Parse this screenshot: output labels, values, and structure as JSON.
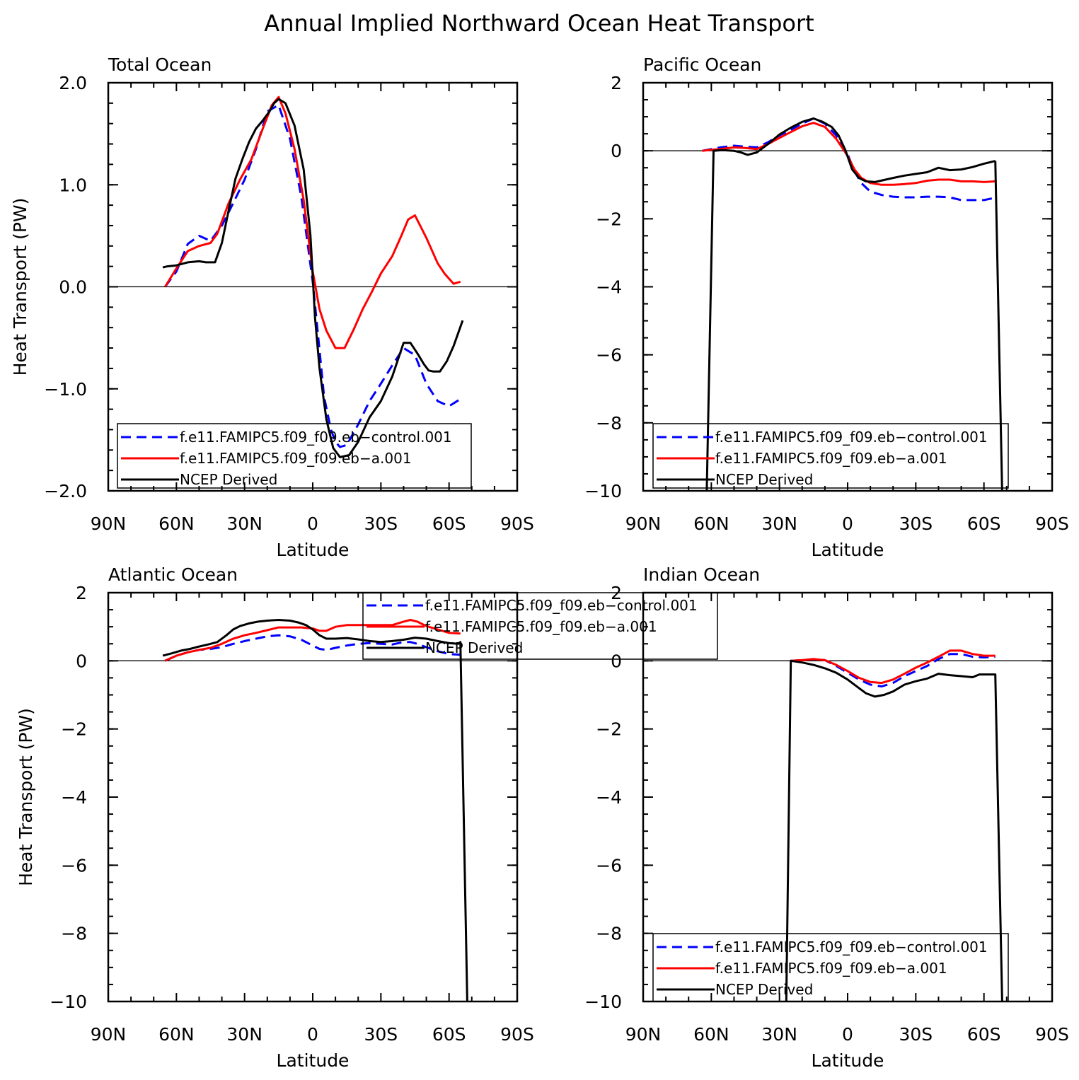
{
  "title": "Annual Implied Northward Ocean Heat Transport",
  "chart_data": [
    {
      "type": "line",
      "panel": "total",
      "subtitle": "Total Ocean",
      "xlabel": "Latitude",
      "ylabel": "Heat Transport (PW)",
      "xlim": [
        90,
        -90
      ],
      "ylim": [
        -2,
        2
      ],
      "x_ticks": [
        90,
        60,
        30,
        0,
        -30,
        -60,
        -90
      ],
      "x_tick_labels": [
        "90N",
        "60N",
        "30N",
        "0",
        "30S",
        "60S",
        "90S"
      ],
      "y_ticks": [
        -2,
        -1,
        0,
        1,
        2
      ],
      "y_tick_labels": [
        "−2.0",
        "−1.0",
        "0.0",
        "1.0",
        "2.0"
      ],
      "legend_position": "bottom-left",
      "series": [
        {
          "name": "f.e11.FAMIPC5.f09_f09.eb−control.001",
          "color": "#0000ff",
          "dash": "dashed",
          "x": [
            65,
            60,
            55,
            50,
            45,
            40,
            35,
            30,
            25,
            20,
            15,
            10,
            5,
            0,
            -3,
            -5,
            -8,
            -10,
            -12,
            -15,
            -20,
            -25,
            -30,
            -35,
            -40,
            -45,
            -50,
            -55,
            -60,
            -65
          ],
          "y": [
            0.0,
            0.15,
            0.42,
            0.5,
            0.45,
            0.6,
            0.82,
            1.05,
            1.35,
            1.72,
            1.78,
            1.45,
            0.88,
            0.05,
            -0.62,
            -1.08,
            -1.4,
            -1.52,
            -1.57,
            -1.55,
            -1.35,
            -1.12,
            -0.95,
            -0.77,
            -0.6,
            -0.67,
            -0.95,
            -1.12,
            -1.17,
            -1.1
          ]
        },
        {
          "name": "f.e11.FAMIPC5.f09_f09.eb−a.001",
          "color": "#ff0000",
          "dash": "solid",
          "x": [
            65,
            60,
            55,
            50,
            45,
            42,
            37,
            32,
            27,
            22,
            18,
            15,
            12,
            8,
            4,
            0,
            -3,
            -6,
            -10,
            -14,
            -18,
            -22,
            -26,
            -30,
            -35,
            -39,
            -42,
            -45,
            -50,
            -55,
            -58,
            -62,
            -65
          ],
          "y": [
            0.0,
            0.18,
            0.35,
            0.4,
            0.43,
            0.52,
            0.82,
            1.05,
            1.25,
            1.55,
            1.78,
            1.86,
            1.7,
            1.35,
            0.85,
            0.15,
            -0.22,
            -0.43,
            -0.6,
            -0.6,
            -0.42,
            -0.22,
            -0.05,
            0.13,
            0.3,
            0.5,
            0.66,
            0.7,
            0.48,
            0.23,
            0.13,
            0.03,
            0.05
          ]
        },
        {
          "name": "NCEP Derived",
          "color": "#000000",
          "dash": "solid",
          "x": [
            66,
            64,
            60,
            55,
            50,
            47,
            45,
            43,
            40,
            37,
            34,
            31,
            28,
            25,
            22,
            19,
            17,
            15,
            12,
            8,
            4,
            1,
            -1,
            -3,
            -6,
            -9,
            -12,
            -16,
            -20,
            -25,
            -30,
            -35,
            -40,
            -43,
            -46,
            -49,
            -51,
            -53,
            -56,
            -59,
            -62,
            -66
          ],
          "y": [
            0.19,
            0.2,
            0.21,
            0.24,
            0.25,
            0.24,
            0.24,
            0.24,
            0.43,
            0.75,
            1.06,
            1.25,
            1.42,
            1.55,
            1.63,
            1.72,
            1.8,
            1.84,
            1.8,
            1.58,
            1.15,
            0.5,
            -0.3,
            -0.8,
            -1.3,
            -1.58,
            -1.67,
            -1.65,
            -1.52,
            -1.28,
            -1.12,
            -0.88,
            -0.55,
            -0.55,
            -0.65,
            -0.76,
            -0.82,
            -0.83,
            -0.83,
            -0.73,
            -0.58,
            -0.33
          ]
        }
      ]
    },
    {
      "type": "line",
      "panel": "pacific",
      "subtitle": "Pacific Ocean",
      "xlabel": "Latitude",
      "ylabel": "",
      "xlim": [
        90,
        -90
      ],
      "ylim": [
        -10,
        2
      ],
      "x_ticks": [
        90,
        60,
        30,
        0,
        -30,
        -60,
        -90
      ],
      "x_tick_labels": [
        "90N",
        "60N",
        "30N",
        "0",
        "30S",
        "60S",
        "90S"
      ],
      "y_ticks": [
        -10,
        -8,
        -6,
        -4,
        -2,
        0,
        2
      ],
      "y_tick_labels": [
        "−10",
        "−8",
        "−6",
        "−4",
        "−2",
        "0",
        "2"
      ],
      "legend_position": "bottom-left",
      "series": [
        {
          "name": "f.e11.FAMIPC5.f09_f09.eb−control.001",
          "color": "#0000ff",
          "dash": "dashed",
          "x": [
            64,
            60,
            56,
            50,
            45,
            40,
            35,
            30,
            25,
            20,
            15,
            10,
            5,
            0,
            -3,
            -6,
            -10,
            -15,
            -20,
            -25,
            -30,
            -35,
            -40,
            -45,
            -50,
            -55,
            -60,
            -65
          ],
          "y": [
            0.0,
            0.05,
            0.1,
            0.15,
            0.12,
            0.1,
            0.25,
            0.45,
            0.62,
            0.8,
            0.95,
            0.8,
            0.45,
            -0.1,
            -0.6,
            -0.95,
            -1.2,
            -1.3,
            -1.35,
            -1.37,
            -1.37,
            -1.35,
            -1.35,
            -1.37,
            -1.45,
            -1.45,
            -1.45,
            -1.38
          ]
        },
        {
          "name": "f.e11.FAMIPC5.f09_f09.eb−a.001",
          "color": "#ff0000",
          "dash": "solid",
          "x": [
            64,
            60,
            56,
            50,
            45,
            40,
            35,
            30,
            25,
            20,
            15,
            10,
            5,
            0,
            -3,
            -6,
            -10,
            -15,
            -20,
            -25,
            -30,
            -35,
            -40,
            -45,
            -50,
            -55,
            -60,
            -65
          ],
          "y": [
            0.0,
            0.03,
            0.05,
            0.1,
            0.08,
            0.05,
            0.2,
            0.38,
            0.55,
            0.72,
            0.82,
            0.7,
            0.35,
            -0.15,
            -0.55,
            -0.8,
            -0.95,
            -1.0,
            -1.0,
            -0.98,
            -0.95,
            -0.88,
            -0.85,
            -0.85,
            -0.9,
            -0.9,
            -0.92,
            -0.9
          ]
        },
        {
          "name": "NCEP Derived",
          "color": "#000000",
          "dash": "solid",
          "x": [
            62,
            59,
            55,
            50,
            47,
            44,
            40,
            35,
            30,
            25,
            20,
            15,
            11,
            7,
            4,
            1,
            -2,
            -5,
            -8,
            -12,
            -16,
            -20,
            -25,
            -30,
            -35,
            -40,
            -45,
            -50,
            -55,
            -60,
            -65
          ],
          "y": [
            -10.0,
            0.0,
            0.02,
            0.0,
            -0.05,
            -0.12,
            -0.05,
            0.2,
            0.48,
            0.68,
            0.85,
            0.95,
            0.85,
            0.7,
            0.45,
            0.02,
            -0.55,
            -0.8,
            -0.9,
            -0.92,
            -0.86,
            -0.8,
            -0.73,
            -0.68,
            -0.63,
            -0.5,
            -0.57,
            -0.55,
            -0.48,
            -0.38,
            -0.3
          ]
        }
      ],
      "extra_segment": {
        "x": [
          -65,
          -68
        ],
        "y": [
          -0.3,
          -10.0
        ]
      }
    },
    {
      "type": "line",
      "panel": "atlantic",
      "subtitle": "Atlantic Ocean",
      "xlabel": "Latitude",
      "ylabel": "Heat Transport (PW)",
      "xlim": [
        90,
        -90
      ],
      "ylim": [
        -10,
        2
      ],
      "x_ticks": [
        90,
        60,
        30,
        0,
        -30,
        -60,
        -90
      ],
      "x_tick_labels": [
        "90N",
        "60N",
        "30N",
        "0",
        "30S",
        "60S",
        "90S"
      ],
      "y_ticks": [
        -10,
        -8,
        -6,
        -4,
        -2,
        0,
        2
      ],
      "y_tick_labels": [
        "−10",
        "−8",
        "−6",
        "−4",
        "−2",
        "0",
        "2"
      ],
      "legend_position": "top-center",
      "series": [
        {
          "name": "f.e11.FAMIPC5.f09_f09.eb−control.001",
          "color": "#0000ff",
          "dash": "dashed",
          "x": [
            65,
            60,
            55,
            50,
            45,
            40,
            35,
            30,
            25,
            20,
            15,
            10,
            5,
            0,
            -3,
            -6,
            -10,
            -15,
            -20,
            -25,
            -30,
            -35,
            -40,
            -43,
            -46,
            -50,
            -55,
            -60,
            -65
          ],
          "y": [
            0.0,
            0.15,
            0.25,
            0.32,
            0.35,
            0.4,
            0.5,
            0.58,
            0.65,
            0.72,
            0.75,
            0.72,
            0.62,
            0.45,
            0.35,
            0.32,
            0.38,
            0.45,
            0.5,
            0.52,
            0.5,
            0.48,
            0.55,
            0.55,
            0.5,
            0.4,
            0.28,
            0.2,
            0.18
          ]
        },
        {
          "name": "f.e11.FAMIPC5.f09_f09.eb−a.001",
          "color": "#ff0000",
          "dash": "solid",
          "x": [
            65,
            60,
            55,
            50,
            45,
            40,
            35,
            30,
            25,
            20,
            15,
            10,
            5,
            0,
            -3,
            -6,
            -10,
            -15,
            -20,
            -25,
            -30,
            -35,
            -40,
            -43,
            -46,
            -50,
            -55,
            -60,
            -65
          ],
          "y": [
            0.0,
            0.15,
            0.25,
            0.32,
            0.38,
            0.5,
            0.65,
            0.75,
            0.82,
            0.9,
            0.98,
            0.98,
            0.98,
            0.95,
            0.88,
            0.88,
            1.0,
            1.05,
            1.05,
            1.05,
            1.05,
            1.05,
            1.15,
            1.2,
            1.15,
            1.02,
            0.92,
            0.82,
            0.8
          ]
        },
        {
          "name": "NCEP Derived",
          "color": "#000000",
          "dash": "solid",
          "x": [
            66,
            62,
            58,
            54,
            50,
            46,
            42,
            38,
            35,
            32,
            28,
            24,
            20,
            15,
            10,
            6,
            3,
            0,
            -3,
            -6,
            -10,
            -15,
            -20,
            -25,
            -30,
            -35,
            -40,
            -45,
            -50,
            -55,
            -60,
            -64,
            -65,
            -68
          ],
          "y": [
            0.15,
            0.22,
            0.3,
            0.35,
            0.42,
            0.48,
            0.55,
            0.75,
            0.92,
            1.02,
            1.1,
            1.15,
            1.18,
            1.2,
            1.18,
            1.12,
            1.05,
            0.92,
            0.75,
            0.65,
            0.65,
            0.67,
            0.63,
            0.58,
            0.55,
            0.58,
            0.62,
            0.68,
            0.65,
            0.58,
            0.52,
            0.5,
            0.55,
            -10.0
          ]
        }
      ]
    },
    {
      "type": "line",
      "panel": "indian",
      "subtitle": "Indian Ocean",
      "xlabel": "Latitude",
      "ylabel": "",
      "xlim": [
        90,
        -90
      ],
      "ylim": [
        -10,
        2
      ],
      "x_ticks": [
        90,
        60,
        30,
        0,
        -30,
        -60,
        -90
      ],
      "x_tick_labels": [
        "90N",
        "60N",
        "30N",
        "0",
        "30S",
        "60S",
        "90S"
      ],
      "y_ticks": [
        -10,
        -8,
        -6,
        -4,
        -2,
        0,
        2
      ],
      "y_tick_labels": [
        "−10",
        "−8",
        "−6",
        "−4",
        "−2",
        "0",
        "2"
      ],
      "legend_position": "bottom-left",
      "series": [
        {
          "name": "f.e11.FAMIPC5.f09_f09.eb−control.001",
          "color": "#0000ff",
          "dash": "dashed",
          "x": [
            25,
            20,
            15,
            10,
            5,
            0,
            -5,
            -10,
            -15,
            -20,
            -25,
            -30,
            -35,
            -40,
            -45,
            -50,
            -55,
            -60,
            -65
          ],
          "y": [
            0.0,
            0.02,
            0.05,
            0.02,
            -0.15,
            -0.35,
            -0.55,
            -0.7,
            -0.75,
            -0.65,
            -0.45,
            -0.3,
            -0.15,
            0.05,
            0.2,
            0.2,
            0.12,
            0.1,
            0.12
          ]
        },
        {
          "name": "f.e11.FAMIPC5.f09_f09.eb−a.001",
          "color": "#ff0000",
          "dash": "solid",
          "x": [
            25,
            20,
            15,
            10,
            5,
            0,
            -5,
            -10,
            -15,
            -20,
            -25,
            -30,
            -35,
            -40,
            -45,
            -50,
            -55,
            -60,
            -65
          ],
          "y": [
            0.0,
            0.02,
            0.05,
            0.02,
            -0.12,
            -0.3,
            -0.5,
            -0.62,
            -0.65,
            -0.55,
            -0.38,
            -0.2,
            -0.05,
            0.12,
            0.3,
            0.3,
            0.2,
            0.15,
            0.15
          ]
        },
        {
          "name": "NCEP Derived",
          "color": "#000000",
          "dash": "solid",
          "x": [
            27,
            25,
            20,
            15,
            10,
            5,
            0,
            -5,
            -8,
            -12,
            -16,
            -20,
            -25,
            -30,
            -35,
            -40,
            -45,
            -50,
            -55,
            -58,
            -62,
            -65,
            -68
          ],
          "y": [
            -10.0,
            0.0,
            -0.05,
            -0.12,
            -0.22,
            -0.35,
            -0.55,
            -0.8,
            -0.95,
            -1.05,
            -1.0,
            -0.9,
            -0.7,
            -0.6,
            -0.52,
            -0.38,
            -0.42,
            -0.45,
            -0.48,
            -0.4,
            -0.4,
            -0.4,
            -10.0
          ]
        }
      ]
    }
  ]
}
